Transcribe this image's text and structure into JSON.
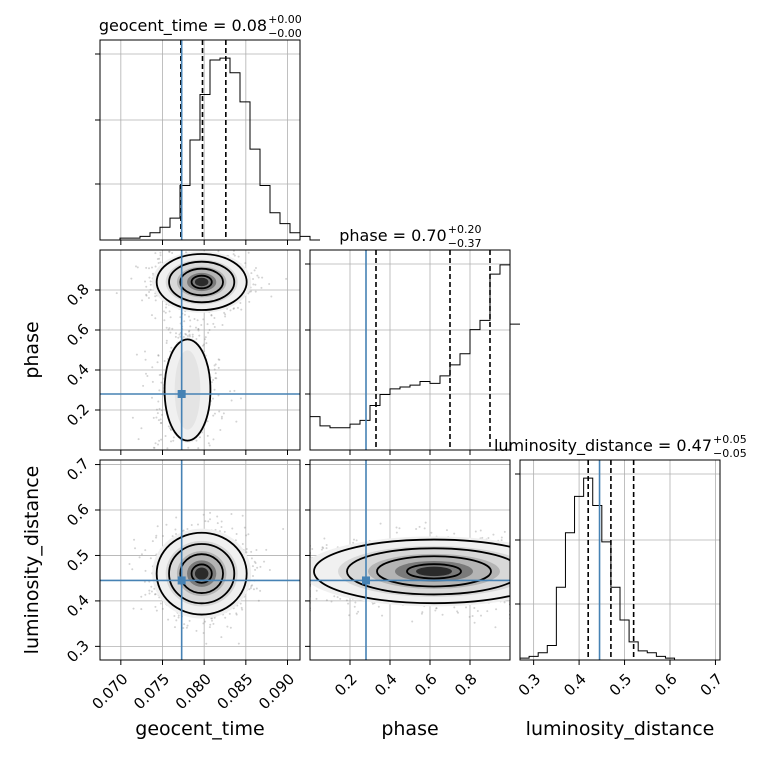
{
  "chart_data": {
    "type": "corner",
    "parameters": [
      "geocent_time",
      "phase",
      "luminosity_distance"
    ],
    "truth": {
      "geocent_time": 0.0773,
      "phase": 0.28,
      "luminosity_distance": 0.445
    },
    "ranges": {
      "geocent_time": [
        0.0675,
        0.0915
      ],
      "phase": [
        0.0,
        1.0
      ],
      "luminosity_distance": [
        0.27,
        0.71
      ]
    },
    "ticks": {
      "geocent_time": [
        "0.070",
        "0.075",
        "0.080",
        "0.085",
        "0.090"
      ],
      "phase": [
        "0.2",
        "0.4",
        "0.6",
        "0.8"
      ],
      "luminosity_distance": [
        "0.3",
        "0.4",
        "0.5",
        "0.6",
        "0.7"
      ]
    },
    "titles": [
      {
        "param": "geocent_time",
        "prefix": "geocent_time = 0.08",
        "sup": "+0.00",
        "sub": "−0.00"
      },
      {
        "param": "phase",
        "prefix": "phase = 0.70",
        "sup": "+0.20",
        "sub": "−0.37"
      },
      {
        "param": "luminosity_distance",
        "prefix": "luminosity_distance = 0.47",
        "sup": "+0.05",
        "sub": "−0.05"
      }
    ],
    "quantiles": {
      "geocent_time": [
        0.0772,
        0.0798,
        0.0826
      ],
      "phase": [
        0.33,
        0.7,
        0.9
      ],
      "luminosity_distance": [
        0.42,
        0.47,
        0.52
      ]
    },
    "histograms": {
      "geocent_time": {
        "bin_start": 0.0675,
        "bin_width": 0.0012,
        "counts": [
          0,
          0,
          1,
          1,
          2,
          4,
          7,
          12,
          30,
          55,
          80,
          99,
          100,
          92,
          76,
          50,
          30,
          15,
          9,
          4,
          2,
          0
        ],
        "ymax": 110
      },
      "phase": {
        "bin_start": 0.0,
        "bin_width": 0.05,
        "counts": [
          18,
          13,
          12,
          12,
          14,
          16,
          24,
          30,
          33,
          34,
          35,
          37,
          36,
          40,
          46,
          52,
          65,
          70,
          95,
          100,
          68
        ],
        "ymax": 108
      },
      "luminosity_distance": {
        "bin_start": 0.27,
        "bin_width": 0.02,
        "counts": [
          1,
          2,
          4,
          8,
          40,
          70,
          90,
          100,
          85,
          65,
          40,
          22,
          10,
          5,
          4,
          2,
          1,
          0,
          0,
          0,
          0,
          0
        ],
        "ymax": 110
      }
    },
    "joint": [
      {
        "x": "geocent_time",
        "y": "phase",
        "mean": [
          0.0797,
          0.84
        ],
        "std": [
          0.0027,
          0.07
        ],
        "tail": [
          0.078,
          0.3,
          0.0022,
          0.22
        ],
        "n": 1400
      },
      {
        "x": "geocent_time",
        "y": "luminosity_distance",
        "mean": [
          0.0797,
          0.46
        ],
        "std": [
          0.0027,
          0.045
        ],
        "n": 1400
      },
      {
        "x": "phase",
        "y": "luminosity_distance",
        "mean": [
          0.62,
          0.465
        ],
        "std": [
          0.3,
          0.035
        ],
        "n": 1400
      }
    ],
    "colors": {
      "truth": "#4682b4",
      "contour": "#000000",
      "points": "#808080",
      "grid": "#b0b0b0"
    },
    "grid": true
  }
}
